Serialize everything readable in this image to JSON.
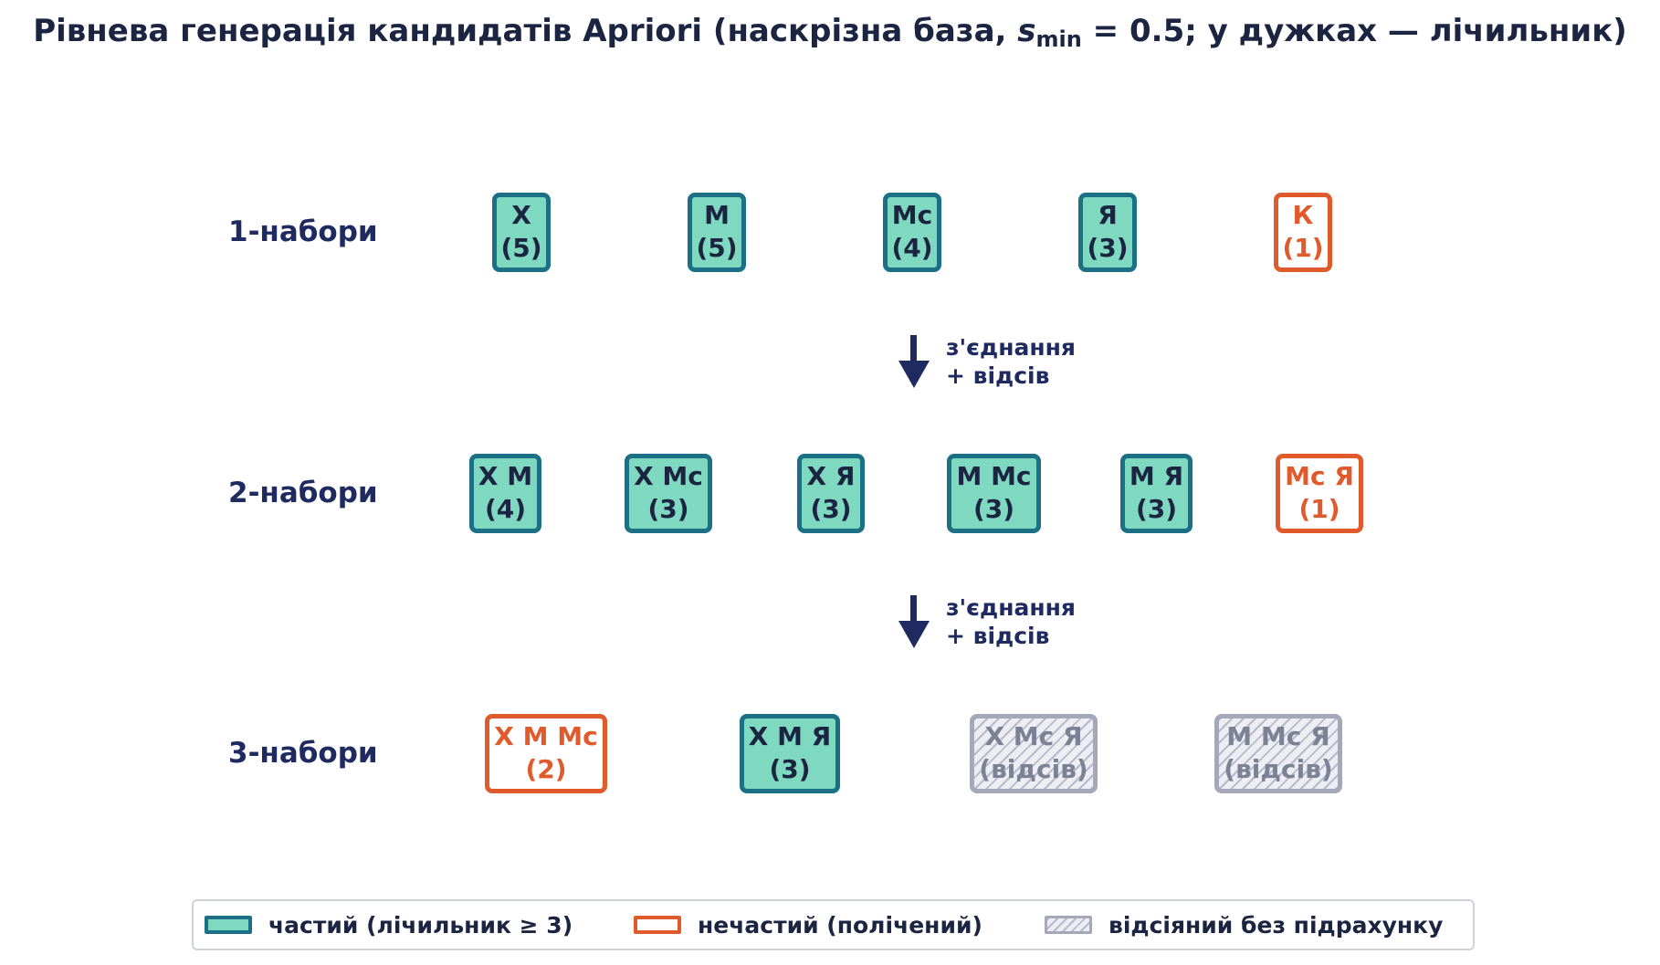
{
  "title": {
    "before": "Рівнева генерація кандидатів Apriori (наскрізна база, ",
    "symbol": "s",
    "subscript": "min",
    "after": " = 0.5; у дужках — лічильник)"
  },
  "levels": [
    {
      "label": "1-набори",
      "nodes": [
        {
          "items": "Х",
          "count": "(5)",
          "status": "frequent"
        },
        {
          "items": "М",
          "count": "(5)",
          "status": "frequent"
        },
        {
          "items": "Мс",
          "count": "(4)",
          "status": "frequent"
        },
        {
          "items": "Я",
          "count": "(3)",
          "status": "frequent"
        },
        {
          "items": "К",
          "count": "(1)",
          "status": "infrequent"
        }
      ]
    },
    {
      "label": "2-набори",
      "nodes": [
        {
          "items": "Х М",
          "count": "(4)",
          "status": "frequent"
        },
        {
          "items": "Х Мс",
          "count": "(3)",
          "status": "frequent"
        },
        {
          "items": "Х Я",
          "count": "(3)",
          "status": "frequent"
        },
        {
          "items": "М Мс",
          "count": "(3)",
          "status": "frequent"
        },
        {
          "items": "М Я",
          "count": "(3)",
          "status": "frequent"
        },
        {
          "items": "Мс Я",
          "count": "(1)",
          "status": "infrequent"
        }
      ]
    },
    {
      "label": "3-набори",
      "nodes": [
        {
          "items": "Х М Мс",
          "count": "(2)",
          "status": "infrequent"
        },
        {
          "items": "Х М Я",
          "count": "(3)",
          "status": "frequent"
        },
        {
          "items": "Х Мс Я",
          "count": "(відсів)",
          "status": "pruned"
        },
        {
          "items": "М Мс Я",
          "count": "(відсів)",
          "status": "pruned"
        }
      ]
    }
  ],
  "transitions": [
    {
      "line1": "з'єднання",
      "line2": "+ відсів"
    },
    {
      "line1": "з'єднання",
      "line2": "+ відсів"
    }
  ],
  "legend": [
    {
      "status": "frequent",
      "label": "частий (лічильник ≥ 3)"
    },
    {
      "status": "infrequent",
      "label": "нечастий (полічений)"
    },
    {
      "status": "pruned",
      "label": "відсіяний без підрахунку"
    }
  ],
  "colors": {
    "frequent_fill": "#7fd9c0",
    "frequent_border": "#1b7085",
    "infrequent_border": "#e05a2b",
    "pruned_border": "#a4a8b9",
    "text_dark": "#1b2440",
    "label_navy": "#1f2a60"
  }
}
